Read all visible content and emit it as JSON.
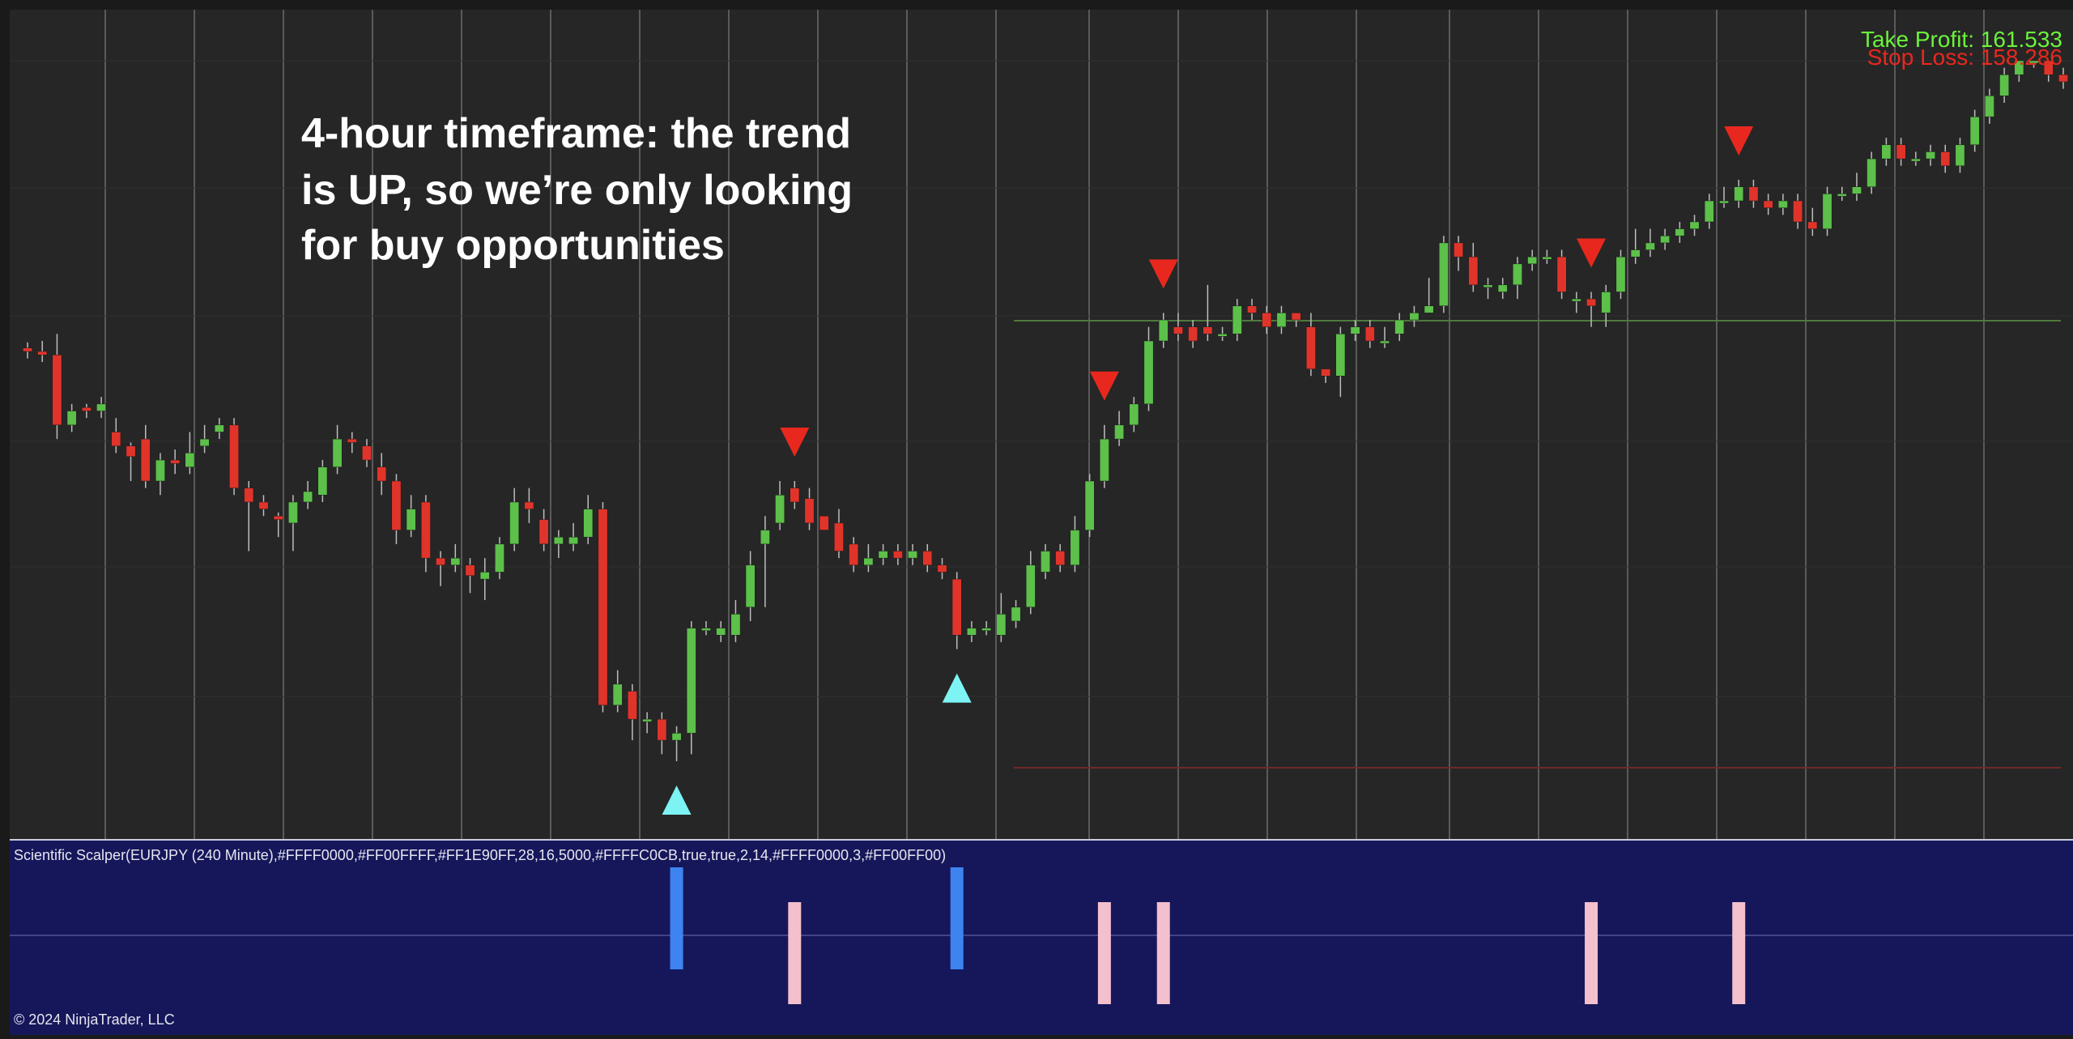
{
  "annotation": {
    "lines": [
      "4-hour timeframe: the trend",
      "is UP, so we’re only looking",
      "for buy opportunities"
    ]
  },
  "take_profit_label": "Take Profit: 161.533",
  "stop_loss_label": "Stop Loss: 158.286",
  "indicator_label": "Scientific Scalper(EURJPY (240 Minute),#FFFF0000,#FF00FFFF,#FF1E90FF,28,16,5000,#FFFFC0CB,true,true,2,14,#FFFF0000,3,#FF00FF00)",
  "copyright": "© 2024 NinjaTrader, LLC",
  "colors": {
    "background": "#262626",
    "up_candle": "#5cc04a",
    "down_candle": "#e0342a",
    "buy_arrow": "#7ef3f3",
    "sell_arrow": "#e8281e",
    "take_profit": "#6cf23c",
    "stop_loss": "#e8281e",
    "indicator_bg": "#16175a",
    "buy_bar": "#3d84f0",
    "sell_bar": "#f4c0cd"
  },
  "chart_data": {
    "type": "candlestick",
    "symbol": "EURJPY",
    "timeframe": "240 Minute",
    "candles": [
      [
        0.59,
        0.585,
        0.598,
        0.575
      ],
      [
        0.585,
        0.58,
        0.6,
        0.57
      ],
      [
        0.58,
        0.48,
        0.61,
        0.46
      ],
      [
        0.48,
        0.5,
        0.51,
        0.47
      ],
      [
        0.505,
        0.5,
        0.51,
        0.49
      ],
      [
        0.5,
        0.51,
        0.52,
        0.49
      ],
      [
        0.47,
        0.45,
        0.49,
        0.44
      ],
      [
        0.45,
        0.435,
        0.455,
        0.4
      ],
      [
        0.46,
        0.4,
        0.48,
        0.39
      ],
      [
        0.4,
        0.43,
        0.44,
        0.38
      ],
      [
        0.43,
        0.425,
        0.445,
        0.41
      ],
      [
        0.42,
        0.44,
        0.47,
        0.41
      ],
      [
        0.45,
        0.46,
        0.48,
        0.44
      ],
      [
        0.47,
        0.48,
        0.49,
        0.46
      ],
      [
        0.48,
        0.39,
        0.49,
        0.38
      ],
      [
        0.39,
        0.37,
        0.4,
        0.3
      ],
      [
        0.37,
        0.36,
        0.38,
        0.35
      ],
      [
        0.35,
        0.345,
        0.355,
        0.32
      ],
      [
        0.34,
        0.37,
        0.38,
        0.3
      ],
      [
        0.37,
        0.385,
        0.4,
        0.36
      ],
      [
        0.38,
        0.42,
        0.43,
        0.37
      ],
      [
        0.42,
        0.46,
        0.48,
        0.41
      ],
      [
        0.46,
        0.455,
        0.47,
        0.44
      ],
      [
        0.45,
        0.43,
        0.46,
        0.42
      ],
      [
        0.42,
        0.4,
        0.44,
        0.38
      ],
      [
        0.4,
        0.33,
        0.41,
        0.31
      ],
      [
        0.33,
        0.36,
        0.38,
        0.32
      ],
      [
        0.37,
        0.29,
        0.38,
        0.27
      ],
      [
        0.29,
        0.28,
        0.3,
        0.25
      ],
      [
        0.28,
        0.29,
        0.31,
        0.27
      ],
      [
        0.28,
        0.265,
        0.29,
        0.24
      ],
      [
        0.26,
        0.27,
        0.29,
        0.23
      ],
      [
        0.27,
        0.31,
        0.32,
        0.26
      ],
      [
        0.31,
        0.37,
        0.39,
        0.3
      ],
      [
        0.37,
        0.36,
        0.39,
        0.34
      ],
      [
        0.345,
        0.31,
        0.36,
        0.3
      ],
      [
        0.31,
        0.32,
        0.33,
        0.29
      ],
      [
        0.31,
        0.32,
        0.34,
        0.3
      ],
      [
        0.32,
        0.36,
        0.38,
        0.31
      ],
      [
        0.36,
        0.08,
        0.37,
        0.07
      ],
      [
        0.08,
        0.11,
        0.13,
        0.07
      ],
      [
        0.1,
        0.06,
        0.11,
        0.03
      ],
      [
        0.06,
        0.06,
        0.07,
        0.04
      ],
      [
        0.06,
        0.03,
        0.07,
        0.01
      ],
      [
        0.03,
        0.04,
        0.05,
        0.0
      ],
      [
        0.04,
        0.19,
        0.2,
        0.01
      ],
      [
        0.19,
        0.19,
        0.2,
        0.18
      ],
      [
        0.18,
        0.19,
        0.2,
        0.17
      ],
      [
        0.18,
        0.21,
        0.23,
        0.17
      ],
      [
        0.22,
        0.28,
        0.3,
        0.2
      ],
      [
        0.31,
        0.33,
        0.35,
        0.22
      ],
      [
        0.34,
        0.38,
        0.4,
        0.33
      ],
      [
        0.39,
        0.37,
        0.4,
        0.36
      ],
      [
        0.375,
        0.34,
        0.39,
        0.33
      ],
      [
        0.35,
        0.33,
        0.34,
        0.33
      ],
      [
        0.34,
        0.3,
        0.36,
        0.29
      ],
      [
        0.31,
        0.28,
        0.32,
        0.27
      ],
      [
        0.28,
        0.29,
        0.31,
        0.27
      ],
      [
        0.29,
        0.3,
        0.31,
        0.28
      ],
      [
        0.3,
        0.29,
        0.31,
        0.28
      ],
      [
        0.29,
        0.3,
        0.31,
        0.28
      ],
      [
        0.3,
        0.28,
        0.31,
        0.27
      ],
      [
        0.28,
        0.27,
        0.29,
        0.26
      ],
      [
        0.26,
        0.18,
        0.27,
        0.16
      ],
      [
        0.18,
        0.19,
        0.2,
        0.17
      ],
      [
        0.19,
        0.19,
        0.2,
        0.18
      ],
      [
        0.18,
        0.21,
        0.24,
        0.17
      ],
      [
        0.2,
        0.22,
        0.23,
        0.19
      ],
      [
        0.22,
        0.28,
        0.3,
        0.21
      ],
      [
        0.27,
        0.3,
        0.31,
        0.26
      ],
      [
        0.3,
        0.28,
        0.31,
        0.27
      ],
      [
        0.28,
        0.33,
        0.35,
        0.27
      ],
      [
        0.33,
        0.4,
        0.41,
        0.32
      ],
      [
        0.4,
        0.46,
        0.48,
        0.39
      ],
      [
        0.46,
        0.48,
        0.5,
        0.45
      ],
      [
        0.48,
        0.51,
        0.52,
        0.47
      ],
      [
        0.51,
        0.6,
        0.62,
        0.5
      ],
      [
        0.6,
        0.63,
        0.64,
        0.59
      ],
      [
        0.62,
        0.61,
        0.64,
        0.6
      ],
      [
        0.62,
        0.6,
        0.63,
        0.59
      ],
      [
        0.62,
        0.61,
        0.68,
        0.6
      ],
      [
        0.61,
        0.61,
        0.62,
        0.6
      ],
      [
        0.61,
        0.65,
        0.66,
        0.6
      ],
      [
        0.65,
        0.64,
        0.66,
        0.63
      ],
      [
        0.64,
        0.62,
        0.65,
        0.61
      ],
      [
        0.62,
        0.64,
        0.65,
        0.61
      ],
      [
        0.64,
        0.63,
        0.64,
        0.62
      ],
      [
        0.62,
        0.56,
        0.64,
        0.55
      ],
      [
        0.56,
        0.55,
        0.56,
        0.54
      ],
      [
        0.55,
        0.61,
        0.62,
        0.52
      ],
      [
        0.61,
        0.62,
        0.63,
        0.6
      ],
      [
        0.62,
        0.6,
        0.63,
        0.59
      ],
      [
        0.6,
        0.6,
        0.62,
        0.59
      ],
      [
        0.61,
        0.63,
        0.64,
        0.6
      ],
      [
        0.63,
        0.64,
        0.65,
        0.62
      ],
      [
        0.64,
        0.65,
        0.69,
        0.64
      ],
      [
        0.65,
        0.74,
        0.75,
        0.64
      ],
      [
        0.74,
        0.72,
        0.75,
        0.7
      ],
      [
        0.72,
        0.68,
        0.74,
        0.67
      ],
      [
        0.68,
        0.68,
        0.69,
        0.66
      ],
      [
        0.67,
        0.68,
        0.69,
        0.66
      ],
      [
        0.68,
        0.71,
        0.72,
        0.66
      ],
      [
        0.71,
        0.72,
        0.73,
        0.7
      ],
      [
        0.72,
        0.72,
        0.73,
        0.71
      ],
      [
        0.72,
        0.67,
        0.73,
        0.66
      ],
      [
        0.66,
        0.66,
        0.67,
        0.64
      ],
      [
        0.66,
        0.65,
        0.67,
        0.62
      ],
      [
        0.64,
        0.67,
        0.68,
        0.62
      ],
      [
        0.67,
        0.72,
        0.73,
        0.66
      ],
      [
        0.72,
        0.73,
        0.76,
        0.71
      ],
      [
        0.73,
        0.74,
        0.76,
        0.72
      ],
      [
        0.74,
        0.75,
        0.76,
        0.73
      ],
      [
        0.75,
        0.76,
        0.77,
        0.74
      ],
      [
        0.76,
        0.77,
        0.78,
        0.75
      ],
      [
        0.77,
        0.8,
        0.81,
        0.76
      ],
      [
        0.8,
        0.8,
        0.82,
        0.79
      ],
      [
        0.8,
        0.82,
        0.83,
        0.79
      ],
      [
        0.82,
        0.8,
        0.83,
        0.79
      ],
      [
        0.8,
        0.79,
        0.81,
        0.78
      ],
      [
        0.79,
        0.8,
        0.81,
        0.78
      ],
      [
        0.8,
        0.77,
        0.81,
        0.76
      ],
      [
        0.77,
        0.76,
        0.79,
        0.75
      ],
      [
        0.76,
        0.81,
        0.82,
        0.75
      ],
      [
        0.81,
        0.81,
        0.82,
        0.8
      ],
      [
        0.81,
        0.82,
        0.84,
        0.8
      ],
      [
        0.82,
        0.86,
        0.87,
        0.81
      ],
      [
        0.86,
        0.88,
        0.89,
        0.85
      ],
      [
        0.88,
        0.86,
        0.89,
        0.85
      ],
      [
        0.86,
        0.86,
        0.87,
        0.85
      ],
      [
        0.86,
        0.87,
        0.88,
        0.85
      ],
      [
        0.87,
        0.85,
        0.88,
        0.84
      ],
      [
        0.85,
        0.88,
        0.89,
        0.84
      ],
      [
        0.88,
        0.92,
        0.93,
        0.87
      ],
      [
        0.92,
        0.95,
        0.96,
        0.91
      ],
      [
        0.95,
        0.98,
        0.99,
        0.94
      ],
      [
        0.98,
        1.0,
        1.0,
        0.97
      ],
      [
        1.0,
        1.0,
        1.0,
        0.99
      ],
      [
        1.0,
        0.98,
        1.0,
        0.97
      ],
      [
        0.98,
        0.97,
        0.99,
        0.96
      ]
    ],
    "buy_signals": [
      44,
      63
    ],
    "sell_signals": [
      52,
      73,
      77,
      106,
      116
    ],
    "take_profit": 161.533,
    "stop_loss": 158.286,
    "indicator": {
      "name": "Scientific Scalper",
      "buy_bars": [
        44,
        63
      ],
      "sell_bars": [
        52,
        73,
        77,
        106,
        116
      ]
    }
  }
}
